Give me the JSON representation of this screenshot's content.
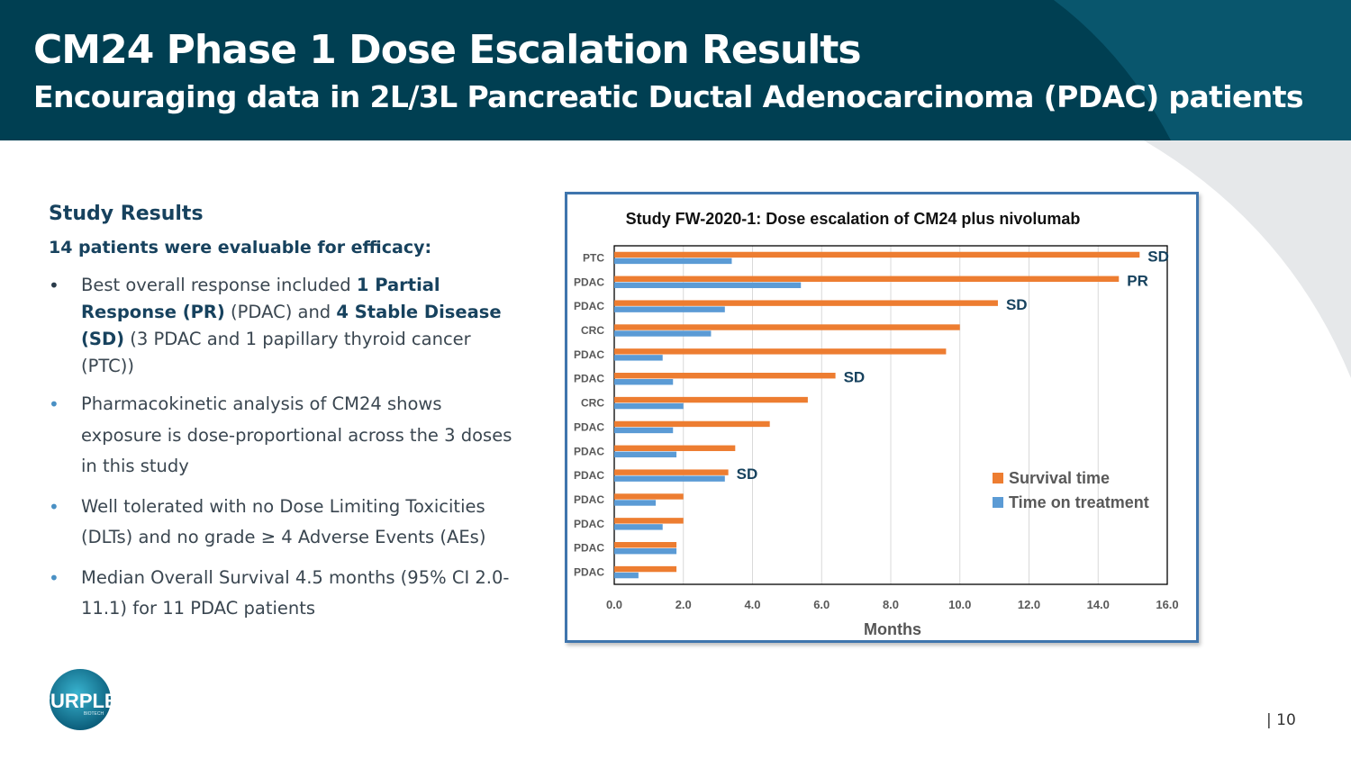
{
  "header": {
    "title": "CM24 Phase 1 Dose Escalation Results",
    "subtitle": "Encouraging data in 2L/3L Pancreatic Ductal Adenocarcinoma (PDAC) patients"
  },
  "left_panel": {
    "heading": "Study Results",
    "lead": "14 patients were evaluable for efficacy:",
    "bullet_symbol": "•",
    "bullets": {
      "b1": {
        "t1": "Best overall response included ",
        "b1": "1 Partial Response (PR)",
        "t2": " (PDAC) and ",
        "b2": "4 Stable Disease (SD)",
        "t3": " (3 PDAC and 1 papillary thyroid cancer (PTC))"
      },
      "b2": "Pharmacokinetic analysis of CM24 shows exposure is dose-proportional across the 3 doses in this study",
      "b3": "Well tolerated with no Dose Limiting Toxicities (DLTs) and no grade ≥ 4 Adverse Events (AEs)",
      "b4": "Median Overall Survival 4.5 months (95% CI 2.0-11.1) for 11 PDAC patients"
    }
  },
  "logo": {
    "text": "PURPLE",
    "small": "BIOTECH"
  },
  "page_number": "| 10",
  "colors": {
    "header_bg": "#003f52",
    "survival": "#ed7d31",
    "treatment": "#5b9bd5",
    "response_label": "#17425e",
    "chart_border": "#3f75ad"
  },
  "chart_data": {
    "type": "bar",
    "orientation": "horizontal",
    "title": "Study FW-2020-1: Dose escalation of CM24 plus nivolumab",
    "xlabel": "Months",
    "ylabel": "",
    "xlim": [
      0,
      16
    ],
    "x_ticks": [
      "0.0",
      "2.0",
      "4.0",
      "6.0",
      "8.0",
      "10.0",
      "12.0",
      "14.0",
      "16.0"
    ],
    "grid": "vertical",
    "legend_position": "bottom-right",
    "categories": [
      "PTC",
      "PDAC",
      "PDAC",
      "CRC",
      "PDAC",
      "PDAC",
      "CRC",
      "PDAC",
      "PDAC",
      "PDAC",
      "PDAC",
      "PDAC",
      "PDAC",
      "PDAC"
    ],
    "series": [
      {
        "name": "Survival time",
        "values": [
          15.2,
          14.6,
          11.1,
          10.0,
          9.6,
          6.4,
          5.6,
          4.5,
          3.5,
          3.3,
          2.0,
          2.0,
          1.8,
          1.8
        ]
      },
      {
        "name": "Time on treatment",
        "values": [
          3.4,
          5.4,
          3.2,
          2.8,
          1.4,
          1.7,
          2.0,
          1.7,
          1.8,
          3.2,
          1.2,
          1.4,
          1.8,
          0.7
        ]
      }
    ],
    "annotations": [
      {
        "row": 0,
        "text": "SD"
      },
      {
        "row": 1,
        "text": "PR"
      },
      {
        "row": 2,
        "text": "SD"
      },
      {
        "row": 5,
        "text": "SD"
      },
      {
        "row": 9,
        "text": "SD"
      }
    ]
  }
}
